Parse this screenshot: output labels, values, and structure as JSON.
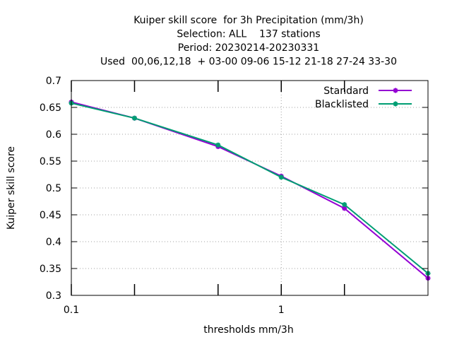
{
  "chart_data": {
    "type": "line",
    "title_lines": [
      "Kuiper skill score  for 3h Precipitation (mm/3h)",
      "Selection: ALL    137 stations",
      "Period: 20230214-20230331",
      "Used  00,06,12,18  + 03-00 09-06 15-12 21-18 27-24 33-30"
    ],
    "xlabel": "thresholds mm/3h",
    "ylabel": "Kuiper skill score",
    "x_scale": "log",
    "xlim": [
      0.1,
      5
    ],
    "ylim": [
      0.3,
      0.7
    ],
    "x_ticks": [
      0.1,
      1
    ],
    "x_tick_labels": [
      "0.1",
      "1"
    ],
    "x_minor_ticks": [
      0.2,
      0.5,
      2
    ],
    "y_ticks": [
      0.3,
      0.35,
      0.4,
      0.45,
      0.5,
      0.55,
      0.6,
      0.65,
      0.7
    ],
    "y_tick_labels": [
      "0.3",
      "0.35",
      "0.4",
      "0.45",
      "0.5",
      "0.55",
      "0.6",
      "0.65",
      "0.7"
    ],
    "grid": true,
    "legend_position": "top-right",
    "x": [
      0.1,
      0.2,
      0.5,
      1,
      2,
      5
    ],
    "series": [
      {
        "name": "Standard",
        "color": "#9400d3",
        "values": [
          0.66,
          0.63,
          0.577,
          0.522,
          0.462,
          0.332
        ]
      },
      {
        "name": "Blacklisted",
        "color": "#009e73",
        "values": [
          0.658,
          0.63,
          0.58,
          0.52,
          0.469,
          0.341
        ]
      }
    ]
  }
}
